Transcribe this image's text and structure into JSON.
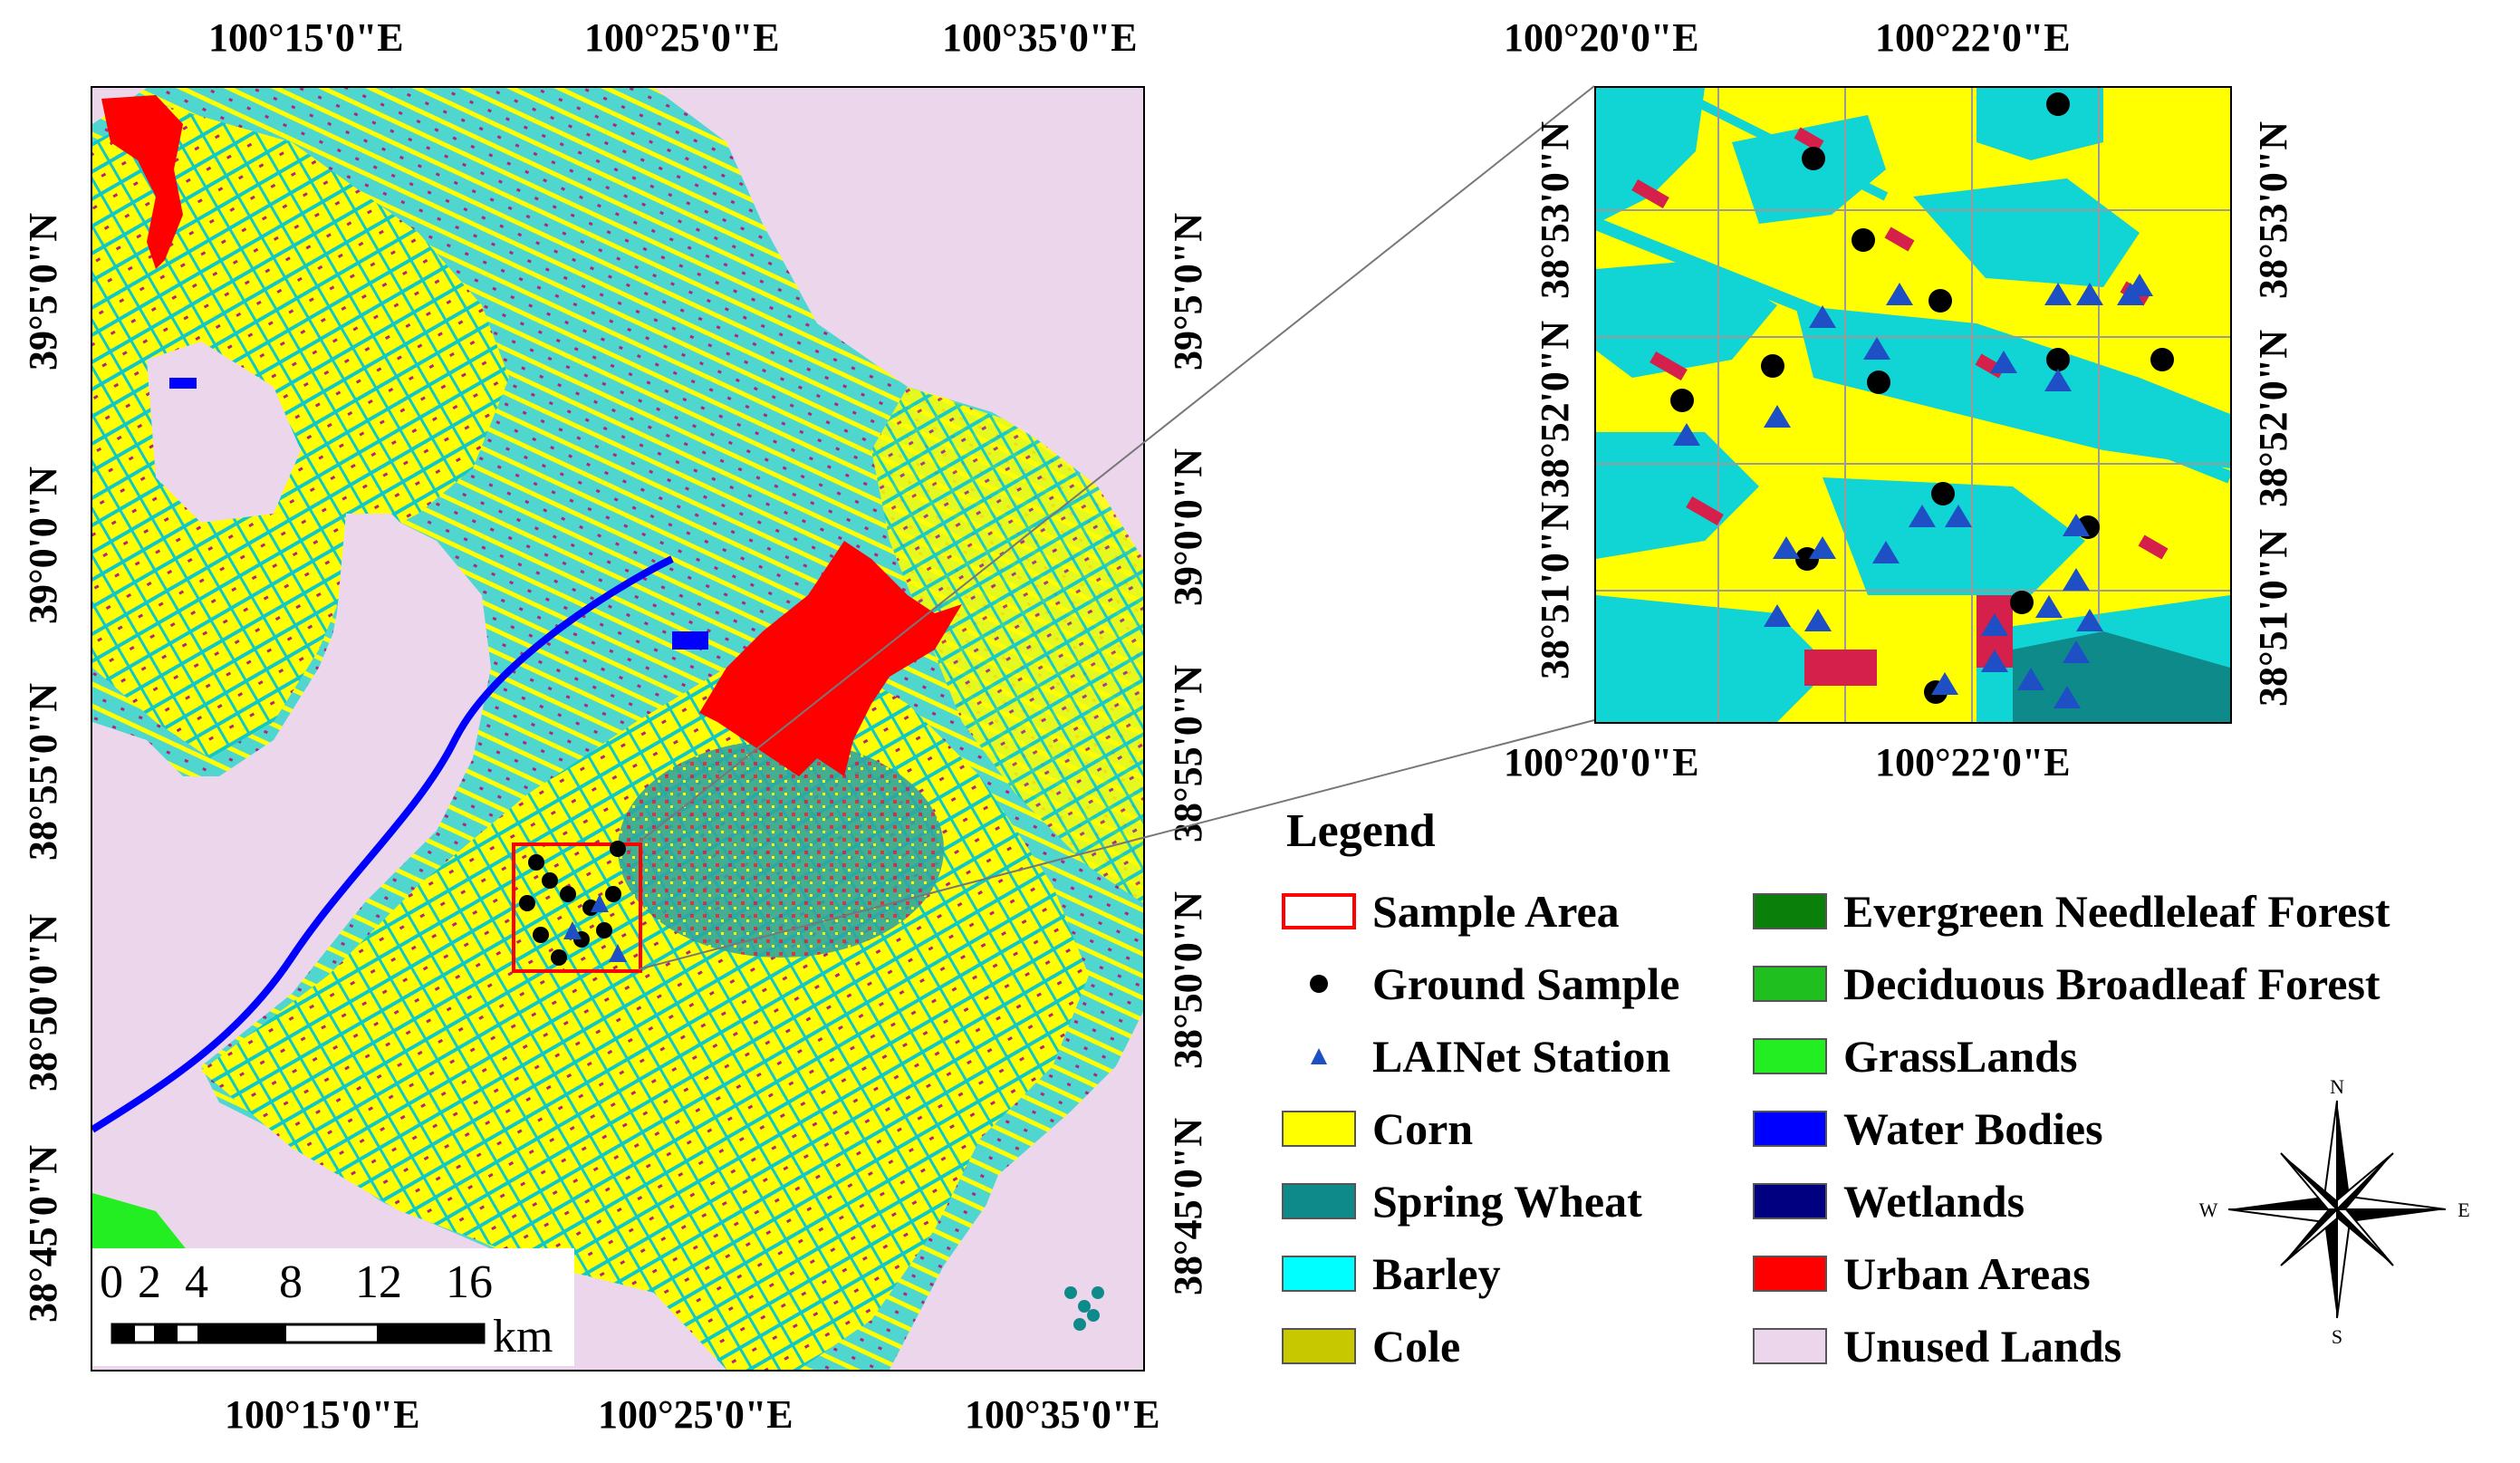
{
  "main_map": {
    "top_labels": [
      "100°15'0\"E",
      "100°25'0\"E",
      "100°35'0\"E"
    ],
    "bottom_labels": [
      "100°15'0\"E",
      "100°25'0\"E",
      "100°35'0\"E"
    ],
    "left_labels": [
      "39°5'0\"N",
      "39°0'0\"N",
      "38°55'0\"N",
      "38°50'0\"N",
      "38°45'0\"N"
    ],
    "right_labels": [
      "39°5'0\"N",
      "39°0'0\"N",
      "38°55'0\"N",
      "38°50'0\"N",
      "38°45'0\"N"
    ]
  },
  "inset_map": {
    "top_labels": [
      "100°20'0\"E",
      "100°22'0\"E"
    ],
    "bottom_labels": [
      "100°20'0\"E",
      "100°22'0\"E"
    ],
    "left_labels": [
      "38°53'0\"N",
      "38°52'0\"N",
      "38°51'0\"N"
    ],
    "right_labels": [
      "38°53'0\"N",
      "38°52'0\"N",
      "38°51'0\"N"
    ]
  },
  "scale": {
    "ticks": [
      "0",
      "2",
      "4",
      "8",
      "12",
      "16"
    ],
    "unit": "km"
  },
  "legend": {
    "title": "Legend",
    "left_column": [
      {
        "label": "Sample Area",
        "kind": "outline",
        "color": "#ff0000"
      },
      {
        "label": "Ground Sample",
        "kind": "dot",
        "color": "#000000"
      },
      {
        "label": "LAINet Station",
        "kind": "triangle",
        "color": "#1f4fc4"
      },
      {
        "label": "Corn",
        "kind": "fill",
        "color": "#ffff00"
      },
      {
        "label": "Spring Wheat",
        "kind": "fill",
        "color": "#0f8a8a"
      },
      {
        "label": "Barley",
        "kind": "fill",
        "color": "#00ffff"
      },
      {
        "label": "Cole",
        "kind": "fill",
        "color": "#c8c800"
      }
    ],
    "right_column": [
      {
        "label": "Evergreen Needleleaf Forest",
        "kind": "fill",
        "color": "#0a7f0a"
      },
      {
        "label": "Deciduous Broadleaf Forest",
        "kind": "fill",
        "color": "#1fbf1f"
      },
      {
        "label": "GrassLands",
        "kind": "fill",
        "color": "#22ee22"
      },
      {
        "label": "Water Bodies",
        "kind": "fill",
        "color": "#0000ff"
      },
      {
        "label": "Wetlands",
        "kind": "fill",
        "color": "#000080"
      },
      {
        "label": "Urban Areas",
        "kind": "fill",
        "color": "#ff0000"
      },
      {
        "label": "Unused Lands",
        "kind": "fill",
        "color": "#ecd6ec"
      }
    ]
  },
  "compass": {
    "n": "N",
    "s": "S",
    "e": "E",
    "w": "W"
  }
}
